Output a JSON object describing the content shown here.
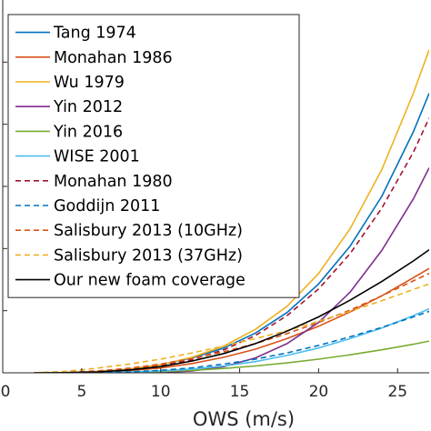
{
  "chart_data": {
    "type": "line",
    "title": "",
    "xlabel": "OWS (m/s)",
    "ylabel": "",
    "xlim": [
      0,
      27
    ],
    "ylim": [
      0,
      0.6
    ],
    "xticks": [
      0,
      5,
      10,
      15,
      20,
      25
    ],
    "xtick_labels": [
      "0",
      "5",
      "10",
      "15",
      "20",
      "25"
    ],
    "yticks": [
      0,
      0.1,
      0.2,
      0.3,
      0.4,
      0.5
    ],
    "ytick_labels": [
      "",
      "",
      "",
      "",
      "",
      ""
    ],
    "grid": false,
    "legend_position": "top-left",
    "x": [
      2,
      4,
      6,
      8,
      10,
      12,
      14,
      16,
      18,
      20,
      22,
      24,
      26,
      27
    ],
    "series": [
      {
        "name": "Tang 1974",
        "color": "#0072BD",
        "dash": "solid",
        "values": [
          0,
          0.0005,
          0.002,
          0.006,
          0.013,
          0.024,
          0.04,
          0.064,
          0.097,
          0.143,
          0.204,
          0.284,
          0.388,
          0.45
        ]
      },
      {
        "name": "Monahan 1986",
        "color": "#D95319",
        "dash": "solid",
        "values": [
          0,
          0.0002,
          0.0012,
          0.0035,
          0.0078,
          0.015,
          0.025,
          0.038,
          0.055,
          0.075,
          0.098,
          0.124,
          0.153,
          0.168
        ]
      },
      {
        "name": "Wu 1979",
        "color": "#EDB120",
        "dash": "solid",
        "values": [
          0,
          0.0005,
          0.002,
          0.006,
          0.013,
          0.025,
          0.043,
          0.07,
          0.107,
          0.16,
          0.232,
          0.327,
          0.45,
          0.52
        ]
      },
      {
        "name": "Yin 2012",
        "color": "#7E2F8E",
        "dash": "solid",
        "values": [
          0,
          0,
          0,
          0,
          0.0005,
          0.003,
          0.01,
          0.024,
          0.047,
          0.081,
          0.13,
          0.197,
          0.28,
          0.33
        ]
      },
      {
        "name": "Yin 2016",
        "color": "#77AC30",
        "dash": "solid",
        "values": [
          0,
          0,
          0.0002,
          0.0008,
          0.002,
          0.004,
          0.007,
          0.011,
          0.016,
          0.022,
          0.029,
          0.037,
          0.046,
          0.051
        ]
      },
      {
        "name": "WISE 2001",
        "color": "#4DBEEE",
        "dash": "solid",
        "values": [
          0,
          0,
          0.0003,
          0.0012,
          0.003,
          0.006,
          0.011,
          0.018,
          0.028,
          0.04,
          0.055,
          0.072,
          0.092,
          0.103
        ]
      },
      {
        "name": "Monahan 1980",
        "color": "#A2142F",
        "dash": "dashed",
        "values": [
          0,
          0.0004,
          0.0018,
          0.005,
          0.011,
          0.021,
          0.037,
          0.06,
          0.092,
          0.135,
          0.192,
          0.265,
          0.355,
          0.41
        ]
      },
      {
        "name": "Goddijn 2011",
        "color": "#0072BD",
        "dash": "dashed",
        "values": [
          0,
          0,
          0.0003,
          0.0015,
          0.004,
          0.008,
          0.014,
          0.022,
          0.032,
          0.044,
          0.058,
          0.073,
          0.09,
          0.099
        ]
      },
      {
        "name": "Salisbury 2013 (10GHz)",
        "color": "#D95319",
        "dash": "dashed",
        "values": [
          0,
          0.0008,
          0.003,
          0.0075,
          0.014,
          0.023,
          0.034,
          0.047,
          0.063,
          0.081,
          0.101,
          0.124,
          0.148,
          0.16
        ]
      },
      {
        "name": "Salisbury 2013 (37GHz)",
        "color": "#EDB120",
        "dash": "dashed",
        "values": [
          0,
          0.0025,
          0.0075,
          0.014,
          0.022,
          0.032,
          0.043,
          0.055,
          0.068,
          0.083,
          0.099,
          0.116,
          0.134,
          0.143
        ]
      },
      {
        "name": "Our new foam coverage",
        "color": "#000000",
        "dash": "solid",
        "values": [
          0,
          0.0003,
          0.0015,
          0.0045,
          0.01,
          0.019,
          0.031,
          0.047,
          0.067,
          0.09,
          0.117,
          0.147,
          0.18,
          0.198
        ]
      }
    ]
  }
}
